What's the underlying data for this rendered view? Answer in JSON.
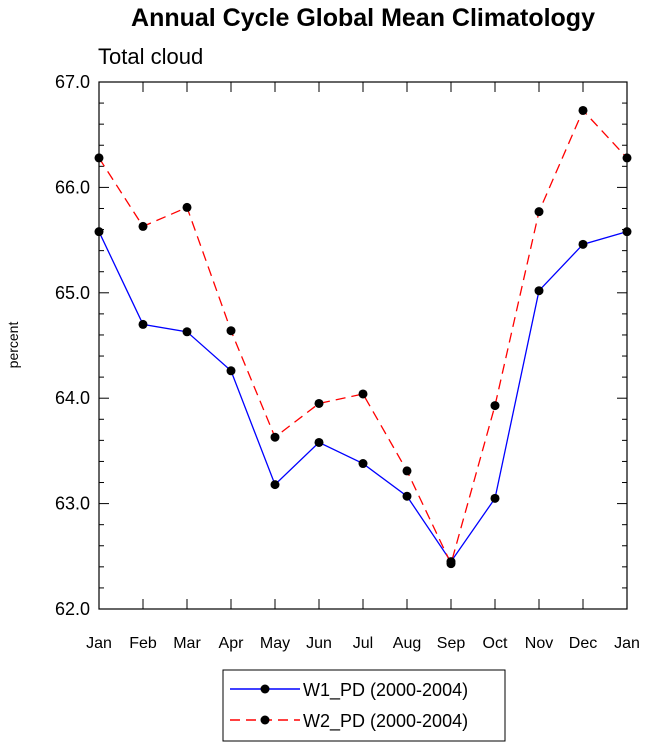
{
  "chart_data": {
    "type": "line",
    "title": "Annual Cycle Global Mean Climatology",
    "subtitle": "Total cloud",
    "xlabel": "",
    "ylabel": "percent",
    "categories": [
      "Jan",
      "Feb",
      "Mar",
      "Apr",
      "May",
      "Jun",
      "Jul",
      "Aug",
      "Sep",
      "Oct",
      "Nov",
      "Dec",
      "Jan"
    ],
    "ylim": [
      62.0,
      67.0
    ],
    "y_ticks": [
      62.0,
      63.0,
      64.0,
      65.0,
      66.0,
      67.0
    ],
    "y_tick_labels": [
      "62.0",
      "63.0",
      "64.0",
      "65.0",
      "66.0",
      "67.0"
    ],
    "grid": false,
    "legend_position": "bottom-center",
    "series": [
      {
        "name": "W1_PD (2000-2004)",
        "color": "#0000ff",
        "line_style": "solid",
        "marker_color": "#000000",
        "values": [
          65.58,
          64.7,
          64.63,
          64.26,
          63.18,
          63.58,
          63.38,
          63.07,
          62.45,
          63.05,
          65.02,
          65.46,
          65.58
        ]
      },
      {
        "name": "W2_PD (2000-2004)",
        "color": "#ff0000",
        "line_style": "dashed",
        "marker_color": "#000000",
        "values": [
          66.28,
          65.63,
          65.81,
          64.64,
          63.63,
          63.95,
          64.04,
          63.31,
          62.43,
          63.93,
          65.77,
          66.73,
          66.28
        ]
      }
    ]
  }
}
